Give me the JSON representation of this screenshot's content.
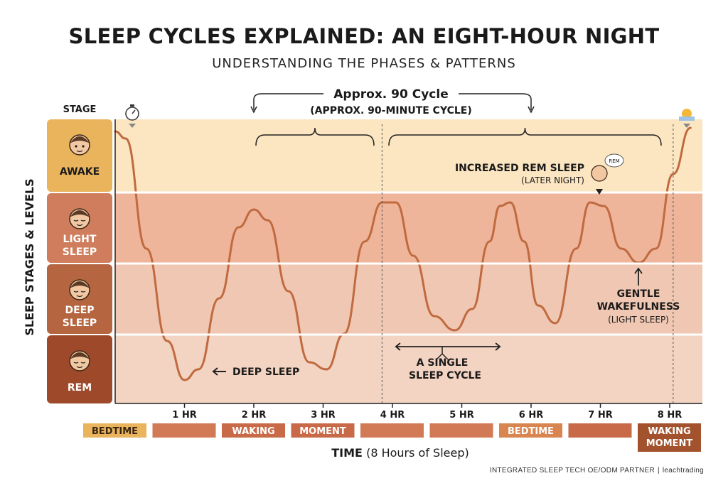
{
  "title": "SLEEP CYCLES EXPLAINED: AN EIGHT-HOUR NIGHT",
  "subtitle": "UNDERSTANDING THE PHASES & PATTERNS",
  "footer": {
    "partner": "INTEGRATED SLEEP TECH OE/ODM PARTNER",
    "brand": "leachtrading"
  },
  "colors": {
    "awake": "#e9b45c",
    "light": "#cf7d5c",
    "deep": "#b5653f",
    "rem": "#9e4a2a",
    "band_awake": "#fbe6c1",
    "band_light": "#eeb59b",
    "band_deep": "#f0c7b2",
    "band_rem": "#f3d3c2",
    "curve": "#c06a3f"
  },
  "chart_data": {
    "type": "line",
    "title": "SLEEP CYCLES EXPLAINED: AN EIGHT-HOUR NIGHT",
    "subtitle": "UNDERSTANDING THE PHASES & PATTERNS",
    "ylabel": "SLEEP STAGES & LEVELS",
    "xlabel": "TIME",
    "xlabel_note": "(8 Hours of Sleep)",
    "stage_header": "STAGE",
    "stages": [
      {
        "key": "awake",
        "label": "AWAKE",
        "level": 3,
        "icon": "awake-face-icon"
      },
      {
        "key": "light",
        "label": "LIGHT SLEEP",
        "level": 2,
        "icon": "light-sleep-face-icon"
      },
      {
        "key": "deep",
        "label": "DEEP SLEEP",
        "level": 1,
        "icon": "deep-sleep-face-icon"
      },
      {
        "key": "rem",
        "label": "REM",
        "level": 0,
        "icon": "dreaming-person-icon"
      }
    ],
    "xlim": [
      0,
      8.3
    ],
    "ylim": [
      0,
      4
    ],
    "x_ticks": [
      {
        "x": 1,
        "label": "1 HR"
      },
      {
        "x": 2,
        "label": "2 HR"
      },
      {
        "x": 3,
        "label": "3 HR"
      },
      {
        "x": 4,
        "label": "4 HR"
      },
      {
        "x": 5,
        "label": "5 HR"
      },
      {
        "x": 6,
        "label": "6 HR"
      },
      {
        "x": 7,
        "label": "7 HR"
      },
      {
        "x": 8,
        "label": "8 HR"
      }
    ],
    "series": [
      {
        "points": [
          [
            0.0,
            3.85
          ],
          [
            0.15,
            3.75
          ],
          [
            0.45,
            2.2
          ],
          [
            0.75,
            0.9
          ],
          [
            1.0,
            0.35
          ],
          [
            1.2,
            0.5
          ],
          [
            1.5,
            1.5
          ],
          [
            1.78,
            2.5
          ],
          [
            2.0,
            2.75
          ],
          [
            2.2,
            2.6
          ],
          [
            2.5,
            1.6
          ],
          [
            2.8,
            0.6
          ],
          [
            3.05,
            0.5
          ],
          [
            3.3,
            1.0
          ],
          [
            3.6,
            2.3
          ],
          [
            3.85,
            2.85
          ],
          [
            4.05,
            2.85
          ],
          [
            4.3,
            2.1
          ],
          [
            4.6,
            1.25
          ],
          [
            4.9,
            1.05
          ],
          [
            5.15,
            1.35
          ],
          [
            5.4,
            2.3
          ],
          [
            5.55,
            2.8
          ],
          [
            5.7,
            2.85
          ],
          [
            5.9,
            2.3
          ],
          [
            6.1,
            1.4
          ],
          [
            6.35,
            1.15
          ],
          [
            6.65,
            2.2
          ],
          [
            6.85,
            2.85
          ],
          [
            7.05,
            2.8
          ],
          [
            7.3,
            2.2
          ],
          [
            7.55,
            2.0
          ],
          [
            7.8,
            2.2
          ],
          [
            8.05,
            3.25
          ],
          [
            8.3,
            3.9
          ]
        ]
      }
    ],
    "cycle_markers": [
      3.85,
      8.05
    ],
    "brackets": [
      {
        "label": "Approx. 90 Cycle",
        "sublabel": "(APPROX. 90-MINUTE CYCLE)",
        "from": 2.0,
        "to": 6.0
      }
    ],
    "annotations": [
      {
        "text": "DEEP SLEEP",
        "x": 1.0,
        "y": 0.35
      },
      {
        "text": "A SINGLE",
        "text2": "SLEEP CYCLE",
        "from": 4.05,
        "to": 5.55
      },
      {
        "text": "INCREASED REM SLEEP",
        "text2": "(LATER NIGHT)",
        "x": 6.85,
        "y": 2.85
      },
      {
        "text": "GENTLE",
        "text2": "WAKEFULNESS",
        "text3": "(LIGHT SLEEP)",
        "x": 7.55,
        "y": 2.0
      }
    ],
    "timeline": [
      {
        "label": "BEDTIME",
        "color": "#e9b45c",
        "text_color": "#3a2410"
      },
      {
        "label": "",
        "color": "#d27a55"
      },
      {
        "label": "WAKING",
        "color": "#c86a47",
        "text_color": "#ffffff"
      },
      {
        "label": "MOMENT",
        "color": "#c86a47",
        "text_color": "#ffffff"
      },
      {
        "label": "",
        "color": "#d27a55"
      },
      {
        "label": "",
        "color": "#d27a55"
      },
      {
        "label": "BEDTIME",
        "color": "#d9854f",
        "text_color": "#ffffff"
      },
      {
        "label": "",
        "color": "#c86a47"
      },
      {
        "label": "WAKING MOMENT",
        "color": "#a2532d",
        "text_color": "#ffffff"
      }
    ],
    "grid": false
  }
}
